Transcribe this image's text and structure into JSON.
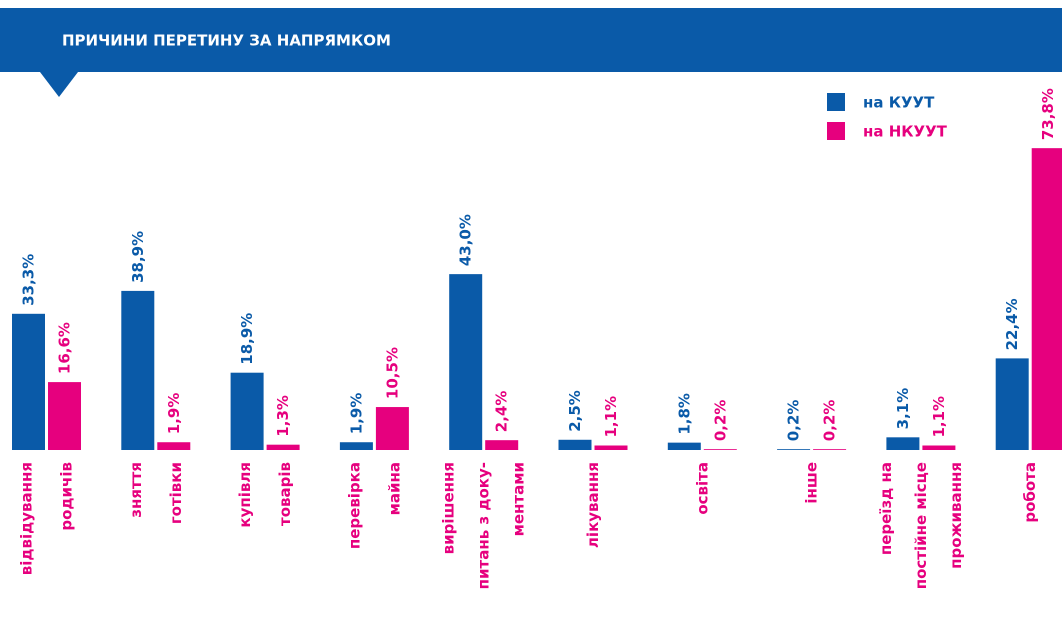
{
  "chart_data": {
    "type": "bar",
    "title": "ПРИЧИНИ ПЕРЕТИНУ ЗА НАПРЯМКОМ",
    "categories": [
      [
        "відвідування",
        "родичів"
      ],
      [
        "зняття",
        "готівки"
      ],
      [
        "купівля",
        "товарів"
      ],
      [
        "перевірка",
        "майна"
      ],
      [
        "вирішення",
        "питань з доку-",
        "ментами"
      ],
      [
        "лікування"
      ],
      [
        "освіта"
      ],
      [
        "інше"
      ],
      [
        "переїзд на",
        "постійне місце",
        "проживання"
      ],
      [
        "робота"
      ]
    ],
    "series": [
      {
        "name": "на КУУТ",
        "color": "#0a5aa8",
        "values": [
          33.3,
          38.9,
          18.9,
          1.9,
          43.0,
          2.5,
          1.8,
          0.2,
          3.1,
          22.4
        ],
        "value_labels": [
          "33,3%",
          "38,9%",
          "18,9%",
          "1,9%",
          "43,0%",
          "2,5%",
          "1,8%",
          "0,2%",
          "3,1%",
          "22,4%"
        ]
      },
      {
        "name": "на НКУУТ",
        "color": "#e6007e",
        "values": [
          16.6,
          1.9,
          1.3,
          10.5,
          2.4,
          1.1,
          0.2,
          0.2,
          1.1,
          73.8
        ],
        "value_labels": [
          "16,6%",
          "1,9%",
          "1,3%",
          "10,5%",
          "2,4%",
          "1,1%",
          "0,2%",
          "0,2%",
          "1,1%",
          "73,8%"
        ]
      }
    ]
  }
}
